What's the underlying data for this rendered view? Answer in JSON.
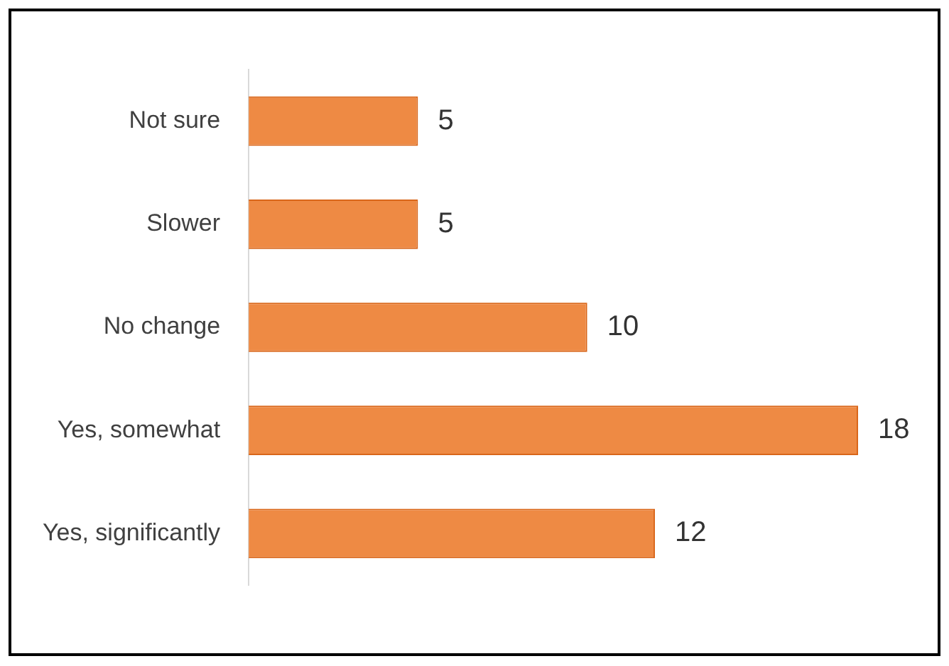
{
  "chart_data": {
    "type": "bar",
    "orientation": "horizontal",
    "categories": [
      "Not sure",
      "Slower",
      "No change",
      "Yes, somewhat",
      "Yes, significantly"
    ],
    "values": [
      5,
      5,
      10,
      18,
      12
    ],
    "color": "#ee8a44",
    "data_labels": true
  }
}
